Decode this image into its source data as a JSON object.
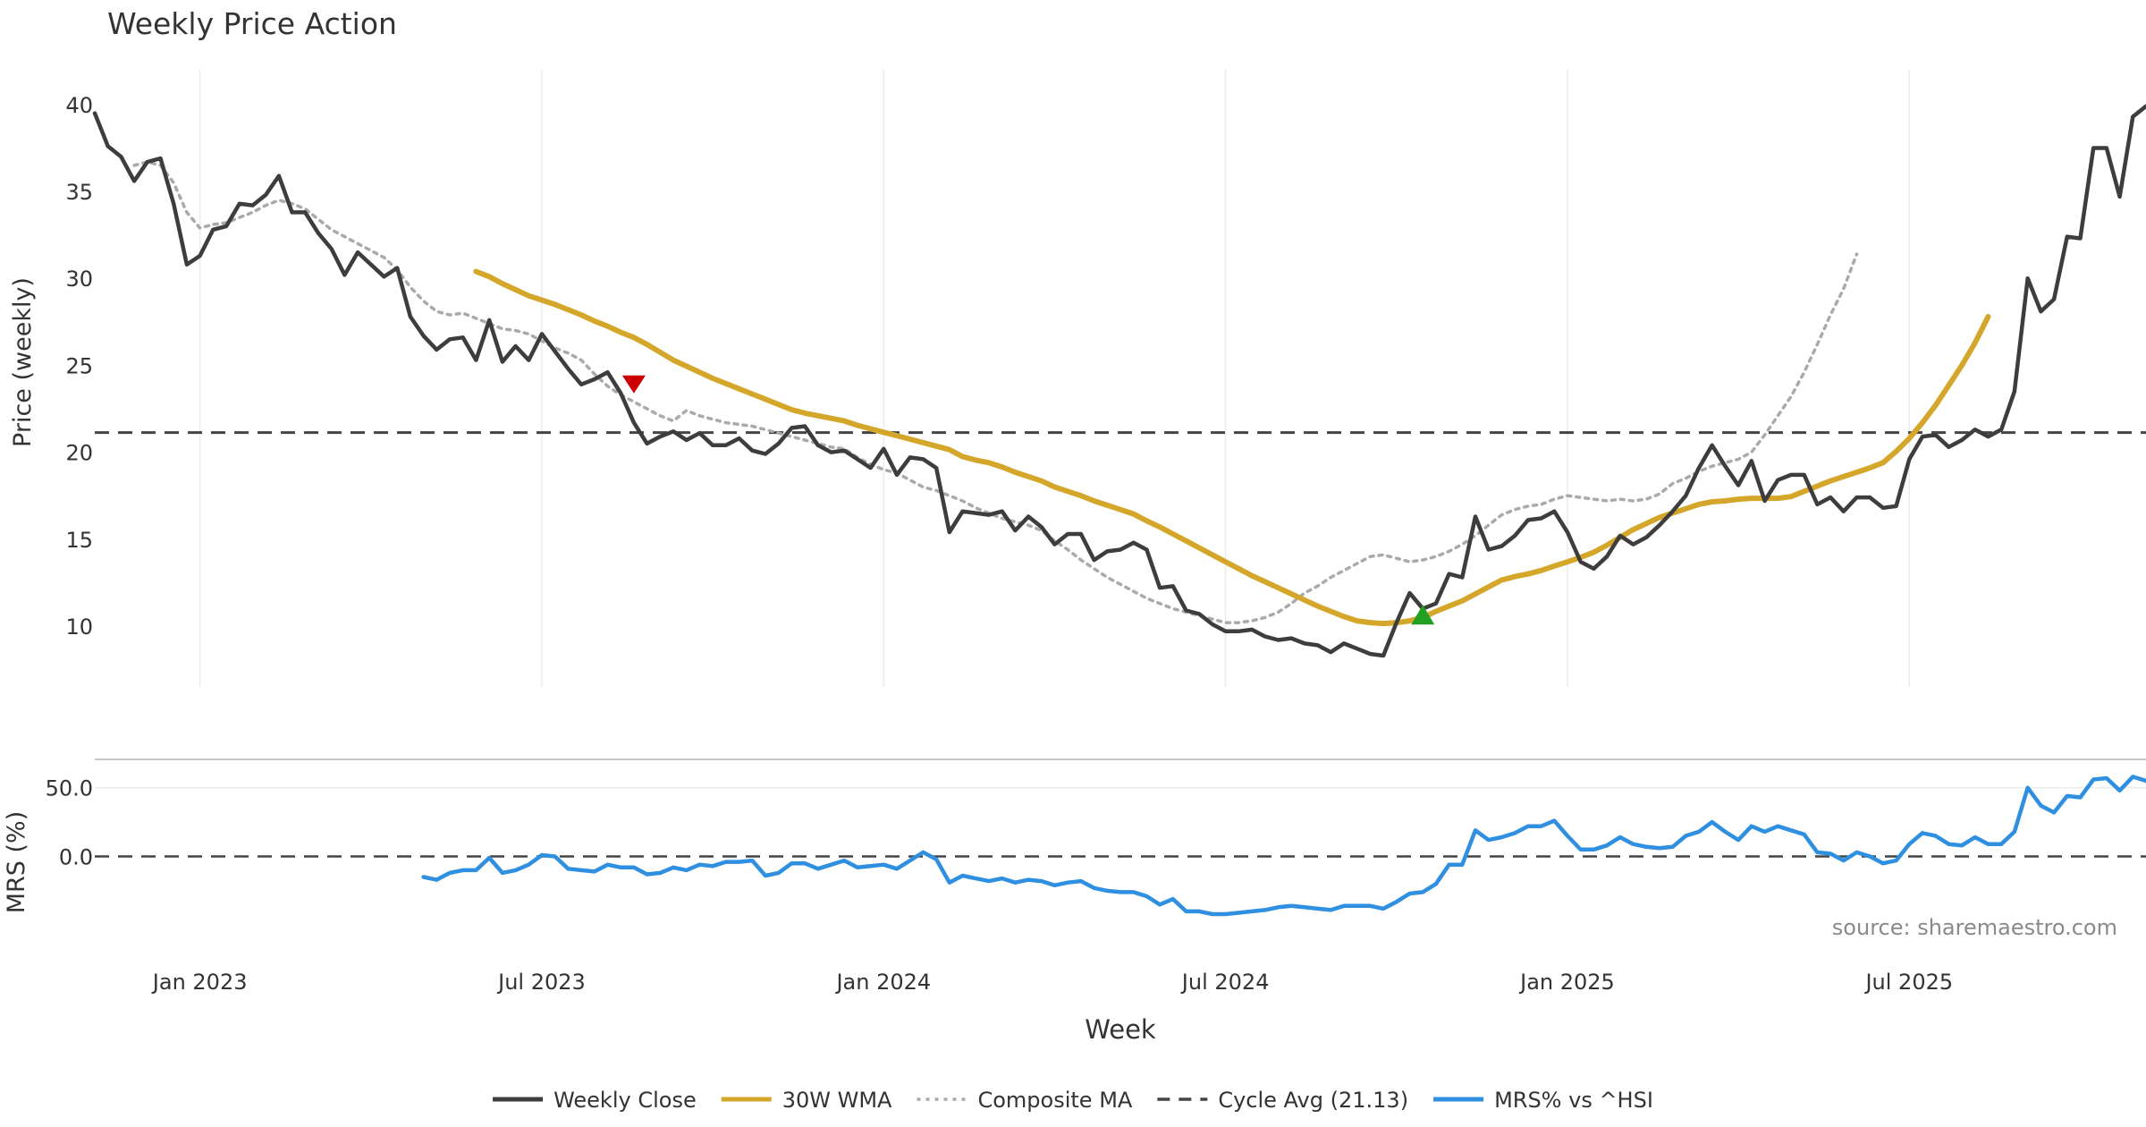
{
  "title": "Weekly Price Action",
  "source": "source: sharemaestro.com",
  "colors": {
    "close": "#3d3d3d",
    "wma": "#d4a62a",
    "composite": "#aaaaaa",
    "cycle": "#444444",
    "mrs": "#2f8fe0",
    "sell": "#cc0000",
    "buy": "#22a022",
    "grid": "#ececec",
    "text": "#333333"
  },
  "chart_data": [
    {
      "type": "line",
      "title": "Weekly Price Action",
      "ylabel": "Price (weekly)",
      "xlabel": "Week",
      "ylim": [
        6.5,
        42
      ],
      "yticks": [
        10,
        15,
        20,
        25,
        30,
        35,
        40
      ],
      "xtick_labels": [
        "Jan 2023",
        "Jul 2023",
        "Jan 2024",
        "Jul 2024",
        "Jan 2025",
        "Jul 2025"
      ],
      "grid": true,
      "cycle_avg": 21.13,
      "weeks_total": 157,
      "series": [
        {
          "name": "Weekly Close",
          "start_index": 0,
          "values": [
            39.5,
            37.6,
            37.0,
            35.6,
            36.7,
            36.9,
            34.3,
            30.8,
            31.3,
            32.8,
            33.0,
            34.3,
            34.2,
            34.8,
            35.9,
            33.8,
            33.8,
            32.6,
            31.7,
            30.2,
            31.5,
            30.8,
            30.1,
            30.6,
            27.8,
            26.7,
            25.9,
            26.5,
            26.6,
            25.3,
            27.6,
            25.2,
            26.1,
            25.3,
            26.8,
            25.8,
            24.8,
            23.9,
            24.2,
            24.6,
            23.4,
            21.7,
            20.5,
            20.9,
            21.2,
            20.7,
            21.1,
            20.4,
            20.4,
            20.8,
            20.1,
            19.9,
            20.5,
            21.4,
            21.5,
            20.4,
            20.0,
            20.1,
            19.6,
            19.1,
            20.2,
            18.7,
            19.7,
            19.6,
            19.1,
            15.4,
            16.6,
            16.5,
            16.4,
            16.6,
            15.5,
            16.3,
            15.7,
            14.7,
            15.3,
            15.3,
            13.8,
            14.3,
            14.4,
            14.8,
            14.4,
            12.2,
            12.3,
            10.9,
            10.7,
            10.1,
            9.7,
            9.7,
            9.8,
            9.4,
            9.2,
            9.3,
            9.0,
            8.9,
            8.5,
            9.0,
            8.7,
            8.4,
            8.3,
            10.2,
            11.9,
            11.0,
            11.3,
            13.0,
            12.8,
            16.3,
            14.4,
            14.6,
            15.2,
            16.1,
            16.2,
            16.6,
            15.4,
            13.7,
            13.3,
            14.0,
            15.2,
            14.7,
            15.1,
            15.8,
            16.6,
            17.5,
            19.1,
            20.4,
            19.2,
            18.1,
            19.5,
            17.2,
            18.4,
            18.7,
            18.7,
            17.0,
            17.4,
            16.6,
            17.4,
            17.4,
            16.8,
            16.9,
            19.6,
            20.9,
            21.0,
            20.3,
            20.7,
            21.3,
            20.9,
            21.3,
            23.5,
            30.0,
            28.1,
            28.8,
            32.4,
            32.3,
            37.5,
            37.5,
            34.7,
            39.3,
            39.9
          ]
        },
        {
          "name": "30W WMA",
          "start_index": 29,
          "values": [
            30.4,
            30.1,
            29.7,
            29.35,
            29.0,
            28.75,
            28.5,
            28.2,
            27.9,
            27.55,
            27.25,
            26.9,
            26.6,
            26.2,
            25.75,
            25.3,
            24.95,
            24.6,
            24.25,
            23.95,
            23.65,
            23.35,
            23.05,
            22.75,
            22.45,
            22.25,
            22.1,
            21.95,
            21.8,
            21.55,
            21.35,
            21.15,
            20.95,
            20.75,
            20.55,
            20.35,
            20.15,
            19.75,
            19.55,
            19.4,
            19.15,
            18.85,
            18.6,
            18.35,
            18.0,
            17.75,
            17.5,
            17.2,
            16.95,
            16.7,
            16.45,
            16.05,
            15.7,
            15.3,
            14.9,
            14.5,
            14.1,
            13.7,
            13.3,
            12.9,
            12.55,
            12.2,
            11.85,
            11.5,
            11.15,
            10.85,
            10.55,
            10.3,
            10.2,
            10.15,
            10.2,
            10.3,
            10.5,
            10.85,
            11.15,
            11.45,
            11.85,
            12.25,
            12.65,
            12.85,
            13.0,
            13.2,
            13.45,
            13.7,
            13.95,
            14.25,
            14.65,
            15.1,
            15.55,
            15.9,
            16.25,
            16.5,
            16.75,
            17.0,
            17.15,
            17.2,
            17.3,
            17.35,
            17.35,
            17.35,
            17.45,
            17.75,
            18.05,
            18.35,
            18.6,
            18.85,
            19.1,
            19.4,
            20.05,
            20.8,
            21.7,
            22.7,
            23.85,
            25.0,
            26.3,
            27.8
          ]
        },
        {
          "name": "Composite MA",
          "start_index": 3,
          "values": [
            36.5,
            36.7,
            36.5,
            35.5,
            33.8,
            32.9,
            33.1,
            33.2,
            33.5,
            33.8,
            34.2,
            34.5,
            34.3,
            34.0,
            33.4,
            32.8,
            32.4,
            32.0,
            31.6,
            31.2,
            30.5,
            29.5,
            28.7,
            28.1,
            27.9,
            28.0,
            27.7,
            27.4,
            27.1,
            27.0,
            26.8,
            26.4,
            26.0,
            25.7,
            25.3,
            24.5,
            23.8,
            23.3,
            22.9,
            22.5,
            22.1,
            21.8,
            22.4,
            22.1,
            21.9,
            21.7,
            21.6,
            21.5,
            21.3,
            21.1,
            20.9,
            20.7,
            20.5,
            20.3,
            20.2,
            19.7,
            19.3,
            19.0,
            18.8,
            18.4,
            18.0,
            17.8,
            17.5,
            17.2,
            16.8,
            16.5,
            16.2,
            16.0,
            15.8,
            15.5,
            14.9,
            14.4,
            13.8,
            13.3,
            12.8,
            12.4,
            12.0,
            11.6,
            11.3,
            11.0,
            10.8,
            10.6,
            10.4,
            10.2,
            10.2,
            10.3,
            10.5,
            10.8,
            11.3,
            11.9,
            12.3,
            12.8,
            13.2,
            13.6,
            14.0,
            14.1,
            13.9,
            13.7,
            13.8,
            14.0,
            14.3,
            14.7,
            15.2,
            15.8,
            16.4,
            16.7,
            16.9,
            17.0,
            17.3,
            17.5,
            17.4,
            17.3,
            17.2,
            17.3,
            17.2,
            17.3,
            17.6,
            18.2,
            18.5,
            18.9,
            19.2,
            19.4,
            19.6,
            20.0,
            21.0,
            22.1,
            23.2,
            24.6,
            26.2,
            27.9,
            29.4,
            31.4
          ]
        }
      ],
      "markers": [
        {
          "type": "sell",
          "week": 41,
          "value": 23.9
        },
        {
          "type": "buy",
          "week": 101,
          "value": 10.6
        }
      ]
    },
    {
      "type": "line",
      "ylabel": "MRS (%)",
      "ylim": [
        -70,
        70
      ],
      "yticks": [
        0.0,
        50.0
      ],
      "ytick_labels": [
        "0.0",
        "50.0"
      ],
      "zero_line": true,
      "series": [
        {
          "name": "MRS% vs ^HSI",
          "start_index": 25,
          "values": [
            -15,
            -17,
            -12,
            -10,
            -10,
            -1,
            -12,
            -10,
            -6,
            1,
            0,
            -9,
            -10,
            -11,
            -6,
            -8,
            -8,
            -13,
            -12,
            -8,
            -10,
            -6,
            -7,
            -4,
            -4,
            -3,
            -14,
            -12,
            -5,
            -5,
            -9,
            -6,
            -3,
            -8,
            -7,
            -6,
            -9,
            -3,
            3,
            -2,
            -19,
            -14,
            -16,
            -18,
            -16,
            -19,
            -17,
            -18,
            -21,
            -19,
            -18,
            -23,
            -25,
            -26,
            -26,
            -29,
            -35,
            -31,
            -40,
            -40,
            -42,
            -42,
            -41,
            -40,
            -39,
            -37,
            -36,
            -37,
            -38,
            -39,
            -36,
            -36,
            -36,
            -38,
            -33,
            -27,
            -26,
            -20,
            -6,
            -6,
            19,
            12,
            14,
            17,
            22,
            22,
            26,
            15,
            5,
            5,
            8,
            14,
            9,
            7,
            6,
            7,
            15,
            18,
            25,
            18,
            12,
            22,
            18,
            22,
            19,
            16,
            3,
            2,
            -3,
            3,
            0,
            -5,
            -3,
            9,
            17,
            15,
            9,
            8,
            14,
            9,
            9,
            18,
            50,
            37,
            32,
            44,
            43,
            56,
            57,
            48,
            58,
            55
          ]
        }
      ]
    }
  ],
  "legend": [
    {
      "label": "Weekly Close",
      "style": "solid",
      "color": "#3d3d3d"
    },
    {
      "label": "30W WMA",
      "style": "solid",
      "color": "#d4a62a"
    },
    {
      "label": "Composite MA",
      "style": "dotted",
      "color": "#aaaaaa"
    },
    {
      "label": "Cycle Avg (21.13)",
      "style": "dashed",
      "color": "#444444"
    },
    {
      "label": "MRS% vs ^HSI",
      "style": "solid",
      "color": "#2f8fe0"
    }
  ]
}
